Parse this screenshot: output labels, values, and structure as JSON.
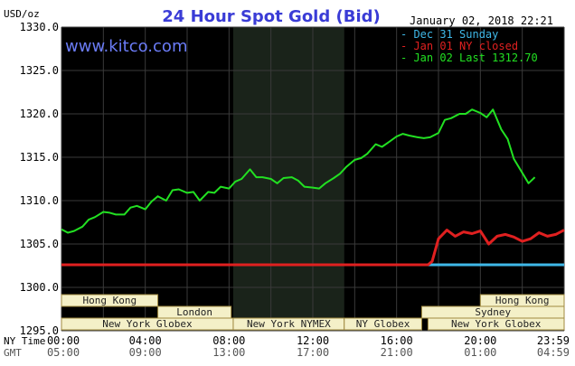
{
  "chart_data": {
    "type": "line",
    "title": "24 Hour Spot Gold (Bid)",
    "watermark": "www.kitco.com",
    "timestamp": "January 02, 2018 22:21",
    "ylabel": "USD/oz",
    "ylim": [
      1295.0,
      1330.0
    ],
    "yticks": [
      "1330.0",
      "1325.0",
      "1320.0",
      "1315.0",
      "1310.0",
      "1305.0",
      "1300.0",
      "1295.0"
    ],
    "xlim": [
      0,
      24
    ],
    "xaxis_rows": [
      {
        "label": "NY Time",
        "ticks": [
          "00:00",
          "04:00",
          "08:00",
          "12:00",
          "16:00",
          "20:00",
          "23:59"
        ]
      },
      {
        "label": "GMT",
        "ticks": [
          "05:00",
          "09:00",
          "13:00",
          "17:00",
          "21:00",
          "01:00",
          "04:59"
        ]
      }
    ],
    "grid": true,
    "legend_position": "top-right",
    "market_sessions": [
      {
        "name": "Hong Kong",
        "start": 0.0,
        "end": 4.6,
        "row": 1
      },
      {
        "name": "London",
        "start": 4.6,
        "end": 8.1,
        "row": 2
      },
      {
        "name": "New York Globex",
        "start": 0.0,
        "end": 8.2,
        "row": 3
      },
      {
        "name": "New York NYMEX",
        "start": 8.2,
        "end": 13.5,
        "row": 3
      },
      {
        "name": "NY Globex",
        "start": 13.5,
        "end": 17.2,
        "row": 3
      },
      {
        "name": "Hong Kong",
        "start": 20.0,
        "end": 24.0,
        "row": 1
      },
      {
        "name": "Sydney",
        "start": 17.2,
        "end": 24.0,
        "row": 2
      },
      {
        "name": "New York Globex",
        "start": 17.5,
        "end": 24.0,
        "row": 3
      }
    ],
    "highlight_band": {
      "start": 8.2,
      "end": 13.5,
      "color": "#1a231a"
    },
    "colors": {
      "plot_bg": "#000000",
      "grid": "#3a3a3a",
      "axis_text": "#000000",
      "title": "#3a3cd6",
      "watermark": "#6b7cf7",
      "session_fill": "#f4f0c8",
      "session_stroke": "#a08a40"
    },
    "series": [
      {
        "name": "Dec 31 Sunday",
        "color": "#3fb8e8",
        "x": [
          17.5,
          24.0
        ],
        "y": [
          1302.6,
          1302.6
        ]
      },
      {
        "name": "Jan 01 NY closed",
        "color": "#e02020",
        "x": [
          0.0,
          17.5,
          17.7,
          18.0,
          18.4,
          18.8,
          19.2,
          19.6,
          20.0,
          20.4,
          20.8,
          21.2,
          21.6,
          22.0,
          22.4,
          22.8,
          23.2,
          23.6,
          24.0
        ],
        "y": [
          1302.6,
          1302.6,
          1303.0,
          1305.6,
          1306.6,
          1305.9,
          1306.4,
          1306.2,
          1306.5,
          1305.0,
          1305.9,
          1306.1,
          1305.8,
          1305.3,
          1305.6,
          1306.3,
          1305.9,
          1306.1,
          1306.6
        ]
      },
      {
        "name": "Jan 02 Last 1312.70",
        "color": "#22e022",
        "x": [
          0.0,
          0.3,
          0.6,
          1.0,
          1.3,
          1.6,
          2.0,
          2.3,
          2.6,
          3.0,
          3.3,
          3.6,
          4.0,
          4.3,
          4.6,
          5.0,
          5.3,
          5.6,
          6.0,
          6.3,
          6.6,
          7.0,
          7.3,
          7.6,
          8.0,
          8.3,
          8.6,
          9.0,
          9.3,
          9.6,
          10.0,
          10.3,
          10.6,
          11.0,
          11.3,
          11.6,
          12.0,
          12.3,
          12.6,
          13.0,
          13.3,
          13.6,
          14.0,
          14.3,
          14.6,
          15.0,
          15.3,
          15.6,
          16.0,
          16.3,
          16.6,
          17.0,
          17.3,
          17.6,
          18.0,
          18.3,
          18.6,
          19.0,
          19.3,
          19.6,
          20.0,
          20.3,
          20.6,
          21.0,
          21.3,
          21.6,
          22.0,
          22.3,
          22.6
        ],
        "y": [
          1306.7,
          1306.3,
          1306.5,
          1307.0,
          1307.8,
          1308.1,
          1308.7,
          1308.6,
          1308.4,
          1308.4,
          1309.2,
          1309.4,
          1309.0,
          1309.9,
          1310.5,
          1310.0,
          1311.2,
          1311.3,
          1310.9,
          1311.0,
          1310.0,
          1311.0,
          1310.9,
          1311.6,
          1311.4,
          1312.2,
          1312.5,
          1313.6,
          1312.7,
          1312.7,
          1312.5,
          1312.0,
          1312.6,
          1312.7,
          1312.3,
          1311.6,
          1311.5,
          1311.4,
          1312.0,
          1312.6,
          1313.1,
          1313.9,
          1314.7,
          1314.9,
          1315.4,
          1316.5,
          1316.2,
          1316.7,
          1317.4,
          1317.7,
          1317.5,
          1317.3,
          1317.2,
          1317.3,
          1317.8,
          1319.3,
          1319.5,
          1320.0,
          1320.0,
          1320.5,
          1320.1,
          1319.6,
          1320.5,
          1318.2,
          1317.1,
          1314.8,
          1313.2,
          1312.0,
          1312.7
        ]
      }
    ]
  }
}
